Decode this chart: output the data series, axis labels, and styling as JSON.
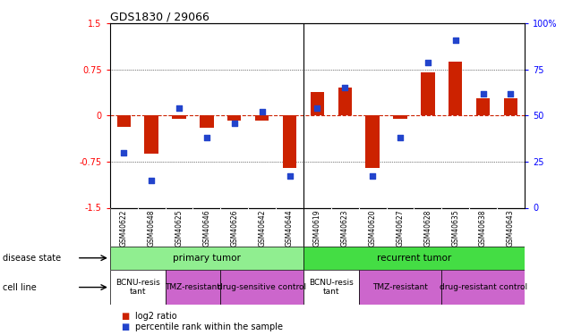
{
  "title": "GDS1830 / 29066",
  "samples": [
    "GSM40622",
    "GSM40648",
    "GSM40625",
    "GSM40646",
    "GSM40626",
    "GSM40642",
    "GSM40644",
    "GSM40619",
    "GSM40623",
    "GSM40620",
    "GSM40627",
    "GSM40628",
    "GSM40635",
    "GSM40638",
    "GSM40643"
  ],
  "log2_ratio": [
    -0.18,
    -0.62,
    -0.05,
    -0.2,
    -0.08,
    -0.08,
    -0.85,
    0.38,
    0.45,
    -0.85,
    -0.05,
    0.7,
    0.88,
    0.28,
    0.28
  ],
  "percentile_rank": [
    30,
    15,
    54,
    38,
    46,
    52,
    17,
    54,
    65,
    17,
    38,
    79,
    91,
    62,
    62
  ],
  "disease_state_groups": [
    {
      "label": "primary tumor",
      "start": 0,
      "end": 7,
      "color": "#90EE90"
    },
    {
      "label": "recurrent tumor",
      "start": 7,
      "end": 15,
      "color": "#44DD44"
    }
  ],
  "cell_line_groups": [
    {
      "label": "BCNU-resis\ntant",
      "start": 0,
      "end": 2,
      "color": "#ffffff"
    },
    {
      "label": "TMZ-resistant",
      "start": 2,
      "end": 4,
      "color": "#CC66CC"
    },
    {
      "label": "drug-sensitive control",
      "start": 4,
      "end": 7,
      "color": "#CC66CC"
    },
    {
      "label": "BCNU-resis\ntant",
      "start": 7,
      "end": 9,
      "color": "#ffffff"
    },
    {
      "label": "TMZ-resistant",
      "start": 9,
      "end": 12,
      "color": "#CC66CC"
    },
    {
      "label": "drug-resistant control",
      "start": 12,
      "end": 15,
      "color": "#CC66CC"
    }
  ],
  "ylim_left": [
    -1.5,
    1.5
  ],
  "ylim_right": [
    0,
    100
  ],
  "yticks_left": [
    -1.5,
    -0.75,
    0,
    0.75,
    1.5
  ],
  "yticks_right": [
    0,
    25,
    50,
    75,
    100
  ],
  "bar_color": "#CC2200",
  "dot_color": "#2244CC",
  "hline_color": "#CC2200",
  "background_color": "#ffffff",
  "disease_state_label": "disease state",
  "cell_line_label": "cell line",
  "legend_items": [
    {
      "label": "log2 ratio",
      "color": "#CC2200"
    },
    {
      "label": "percentile rank within the sample",
      "color": "#2244CC"
    }
  ]
}
